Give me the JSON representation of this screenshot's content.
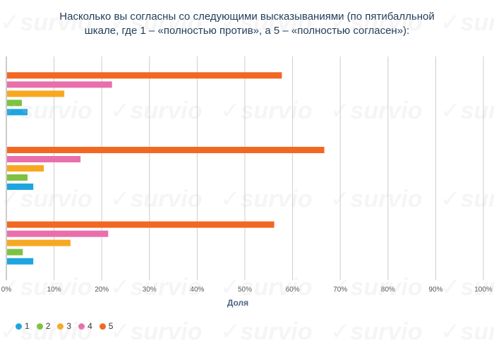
{
  "chart_data": {
    "type": "bar",
    "orientation": "horizontal",
    "title_lines": [
      "Насколько вы согласны со следующими высказываниями (по пятибалльной",
      "шкале, где 1 – «полностью против», а 5 – «полностью согласен»):"
    ],
    "xlabel": "Доля",
    "xlim": [
      0,
      100
    ],
    "x_ticks": [
      "0%",
      "10%",
      "20%",
      "30%",
      "40%",
      "50%",
      "60%",
      "70%",
      "80%",
      "90%",
      "100%"
    ],
    "grid": true,
    "legend_position": "bottom-left",
    "categories": [
      "",
      "",
      ""
    ],
    "series": [
      {
        "name": "1",
        "color": "#1ea5e0",
        "values": [
          4.3,
          5.5,
          5.5
        ]
      },
      {
        "name": "2",
        "color": "#7dc242",
        "values": [
          3.1,
          4.3,
          3.3
        ]
      },
      {
        "name": "3",
        "color": "#f7a823",
        "values": [
          12.0,
          7.7,
          13.3
        ]
      },
      {
        "name": "4",
        "color": "#e96fac",
        "values": [
          22.0,
          15.4,
          21.2
        ]
      },
      {
        "name": "5",
        "color": "#f26722",
        "values": [
          57.6,
          66.5,
          56.0
        ]
      }
    ]
  },
  "watermark_text": "survio"
}
